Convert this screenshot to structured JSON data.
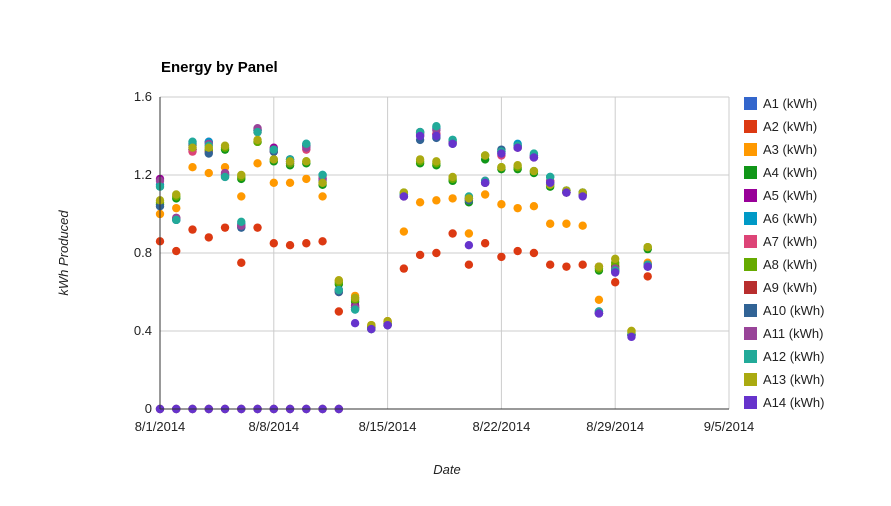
{
  "chart_data": {
    "type": "scatter",
    "title": "Energy by Panel",
    "xlabel": "Date",
    "ylabel": "kWh Produced",
    "x_axis": {
      "type": "date",
      "min": "2014-08-01",
      "max": "2014-09-05",
      "ticks": [
        {
          "value": "2014-08-01",
          "label": "8/1/2014"
        },
        {
          "value": "2014-08-08",
          "label": "8/8/2014"
        },
        {
          "value": "2014-08-15",
          "label": "8/15/2014"
        },
        {
          "value": "2014-08-22",
          "label": "8/22/2014"
        },
        {
          "value": "2014-08-29",
          "label": "8/29/2014"
        },
        {
          "value": "2014-09-05",
          "label": "9/5/2014"
        }
      ]
    },
    "y_axis": {
      "min": 0,
      "max": 1.6,
      "ticks": [
        {
          "value": 0,
          "label": "0"
        },
        {
          "value": 0.4,
          "label": "0.4"
        },
        {
          "value": 0.8,
          "label": "0.8"
        },
        {
          "value": 1.2,
          "label": "1.2"
        },
        {
          "value": 1.6,
          "label": "1.6"
        }
      ]
    },
    "grid": true,
    "legend_position": "right",
    "dates": [
      "2014-08-01",
      "2014-08-02",
      "2014-08-03",
      "2014-08-04",
      "2014-08-05",
      "2014-08-06",
      "2014-08-07",
      "2014-08-08",
      "2014-08-09",
      "2014-08-10",
      "2014-08-11",
      "2014-08-12",
      "2014-08-13",
      "2014-08-14",
      "2014-08-15",
      "2014-08-16",
      "2014-08-17",
      "2014-08-18",
      "2014-08-19",
      "2014-08-20",
      "2014-08-21",
      "2014-08-22",
      "2014-08-23",
      "2014-08-24",
      "2014-08-25",
      "2014-08-26",
      "2014-08-27",
      "2014-08-28",
      "2014-08-29",
      "2014-08-30",
      "2014-08-31"
    ],
    "series": [
      {
        "name": "A1 (kWh)",
        "color": "#3366cc",
        "values": [
          0,
          0,
          0,
          0,
          0,
          0,
          0,
          0,
          0,
          0,
          0,
          0,
          null,
          null,
          null,
          null,
          null,
          null,
          null,
          null,
          null,
          null,
          null,
          null,
          null,
          null,
          null,
          null,
          null,
          null,
          null
        ]
      },
      {
        "name": "A2 (kWh)",
        "color": "#dc3912",
        "values": [
          0.86,
          0.81,
          0.92,
          0.88,
          0.93,
          0.75,
          0.93,
          0.85,
          0.84,
          0.85,
          0.86,
          0.5,
          0.57,
          0.42,
          0.45,
          0.72,
          0.79,
          0.8,
          0.9,
          0.74,
          0.85,
          0.78,
          0.81,
          0.8,
          0.74,
          0.73,
          0.74,
          0.73,
          0.65,
          0.38,
          0.68
        ]
      },
      {
        "name": "A3 (kWh)",
        "color": "#ff9900",
        "values": [
          1.0,
          1.03,
          1.24,
          1.21,
          1.24,
          1.09,
          1.26,
          1.16,
          1.16,
          1.18,
          1.09,
          0.66,
          0.58,
          0.43,
          0.45,
          0.91,
          1.06,
          1.07,
          1.08,
          0.9,
          1.1,
          1.05,
          1.03,
          1.04,
          0.95,
          0.95,
          0.94,
          0.56,
          0.74,
          0.4,
          0.75
        ]
      },
      {
        "name": "A4 (kWh)",
        "color": "#109618",
        "values": [
          1.05,
          1.08,
          1.33,
          1.32,
          1.33,
          1.18,
          1.37,
          1.27,
          1.25,
          1.26,
          1.15,
          0.64,
          0.55,
          0.42,
          0.44,
          1.1,
          1.26,
          1.25,
          1.17,
          1.06,
          1.28,
          1.23,
          1.23,
          1.21,
          1.14,
          1.11,
          1.1,
          0.71,
          0.73,
          0.38,
          0.82
        ]
      },
      {
        "name": "A5 (kWh)",
        "color": "#990099",
        "values": [
          1.18,
          0.98,
          1.33,
          1.37,
          1.2,
          0.94,
          1.43,
          1.34,
          1.28,
          1.35,
          1.18,
          0.61,
          0.53,
          0.41,
          0.43,
          1.09,
          1.41,
          1.41,
          1.37,
          1.08,
          1.17,
          1.32,
          1.35,
          1.29,
          1.17,
          1.11,
          1.11,
          0.49,
          0.71,
          0.38,
          0.74
        ]
      },
      {
        "name": "A6 (kWh)",
        "color": "#0099c6",
        "values": [
          1.15,
          0.97,
          1.37,
          1.37,
          1.2,
          0.95,
          1.43,
          1.33,
          1.28,
          1.36,
          1.2,
          0.61,
          0.51,
          0.41,
          0.43,
          1.1,
          1.42,
          1.44,
          1.38,
          1.08,
          1.16,
          1.32,
          1.36,
          1.3,
          1.19,
          1.12,
          1.11,
          0.49,
          0.71,
          0.38,
          0.74
        ]
      },
      {
        "name": "A7 (kWh)",
        "color": "#dd4477",
        "values": [
          null,
          null,
          1.32,
          1.32,
          1.21,
          0.94,
          1.42,
          1.32,
          1.26,
          1.33,
          1.19,
          0.6,
          0.52,
          0.41,
          0.43,
          1.09,
          1.4,
          1.41,
          1.37,
          1.08,
          1.16,
          1.3,
          1.34,
          1.29,
          1.17,
          1.11,
          1.1,
          0.49,
          0.72,
          0.38,
          0.74
        ]
      },
      {
        "name": "A8 (kWh)",
        "color": "#66aa00",
        "values": [
          1.06,
          1.09,
          1.35,
          1.33,
          1.34,
          1.19,
          1.37,
          1.28,
          1.26,
          1.27,
          1.16,
          0.65,
          0.56,
          0.42,
          0.44,
          1.11,
          1.27,
          1.26,
          1.18,
          1.07,
          1.3,
          1.24,
          1.24,
          1.22,
          1.15,
          1.12,
          1.1,
          0.72,
          0.75,
          0.39,
          0.83
        ]
      },
      {
        "name": "A9 (kWh)",
        "color": "#b82e2e",
        "values": [
          0,
          0,
          0,
          0,
          0,
          0,
          0,
          0,
          0,
          0,
          0,
          0,
          null,
          null,
          null,
          null,
          null,
          null,
          null,
          null,
          null,
          null,
          null,
          null,
          null,
          null,
          null,
          null,
          null,
          null,
          null
        ]
      },
      {
        "name": "A10 (kWh)",
        "color": "#316395",
        "values": [
          1.04,
          0.97,
          1.36,
          1.31,
          1.19,
          0.93,
          1.43,
          1.32,
          1.27,
          1.35,
          1.17,
          0.6,
          0.52,
          0.41,
          0.43,
          1.09,
          1.38,
          1.39,
          1.36,
          1.07,
          1.16,
          1.33,
          1.35,
          1.3,
          1.16,
          1.11,
          1.1,
          0.49,
          0.71,
          0.38,
          0.73
        ]
      },
      {
        "name": "A11 (kWh)",
        "color": "#994499",
        "values": [
          1.17,
          0.98,
          1.34,
          1.36,
          1.21,
          0.94,
          1.44,
          1.33,
          1.27,
          1.34,
          1.18,
          0.61,
          0.52,
          0.41,
          0.43,
          1.09,
          1.42,
          1.43,
          1.37,
          1.08,
          1.16,
          1.31,
          1.34,
          1.29,
          1.17,
          1.11,
          1.1,
          0.5,
          0.72,
          0.38,
          0.74
        ]
      },
      {
        "name": "A12 (kWh)",
        "color": "#22aa99",
        "values": [
          1.14,
          0.97,
          1.37,
          1.35,
          1.19,
          0.96,
          1.42,
          1.33,
          1.28,
          1.36,
          1.2,
          0.61,
          0.51,
          0.41,
          0.43,
          1.1,
          1.42,
          1.45,
          1.38,
          1.09,
          1.17,
          1.32,
          1.35,
          1.31,
          1.19,
          1.12,
          1.11,
          0.5,
          0.71,
          0.38,
          0.74
        ]
      },
      {
        "name": "A13 (kWh)",
        "color": "#aaaa11",
        "values": [
          1.07,
          1.1,
          1.34,
          1.34,
          1.35,
          1.2,
          1.38,
          1.28,
          1.27,
          1.27,
          1.16,
          0.66,
          0.57,
          0.43,
          0.45,
          1.11,
          1.28,
          1.27,
          1.19,
          1.08,
          1.3,
          1.24,
          1.25,
          1.22,
          1.15,
          1.12,
          1.11,
          0.73,
          0.77,
          0.4,
          0.83
        ]
      },
      {
        "name": "A14 (kWh)",
        "color": "#6633cc",
        "values": [
          0,
          0,
          0,
          0,
          0,
          0,
          0,
          0,
          0,
          0,
          0,
          0,
          0.44,
          0.41,
          0.43,
          1.09,
          1.4,
          1.4,
          1.36,
          0.84,
          1.16,
          1.31,
          1.34,
          1.29,
          1.16,
          1.11,
          1.09,
          0.49,
          0.7,
          0.37,
          0.73
        ]
      }
    ]
  }
}
